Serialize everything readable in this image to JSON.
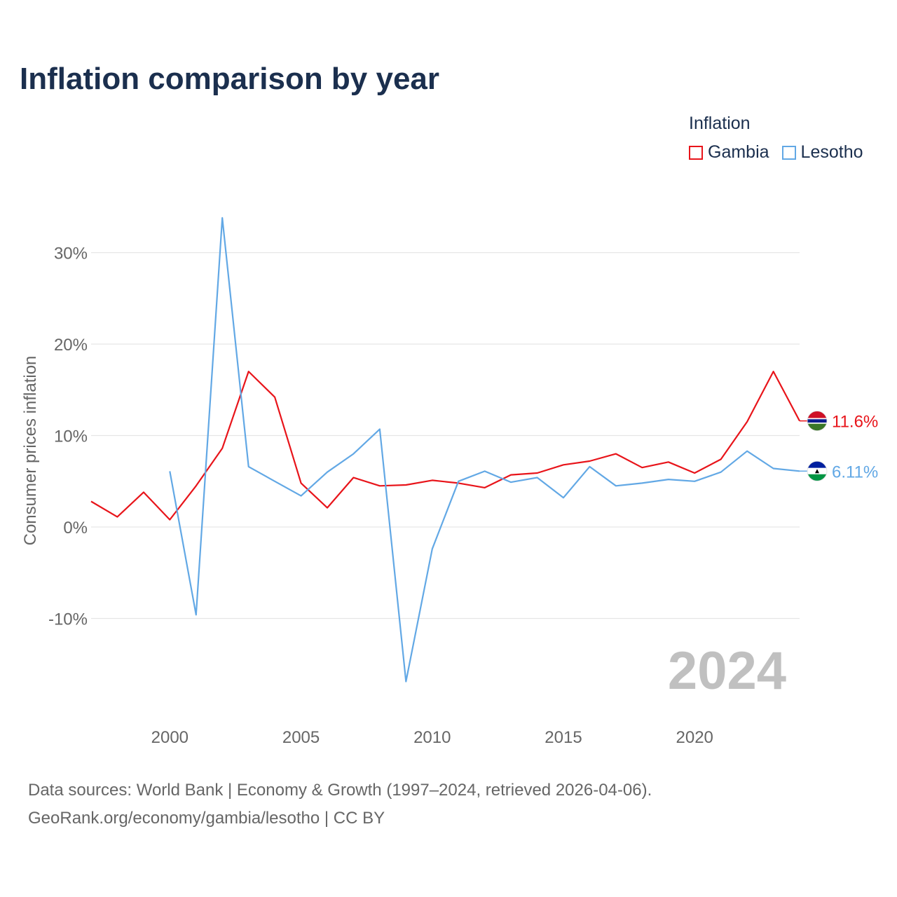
{
  "chart_data": {
    "type": "line",
    "title": "Inflation comparison by year",
    "ylabel": "Consumer prices inflation",
    "xlabel": "",
    "legend_title": "Inflation",
    "legend_position": "top-right",
    "year_watermark": "2024",
    "x": [
      1997,
      1998,
      1999,
      2000,
      2001,
      2002,
      2003,
      2004,
      2005,
      2006,
      2007,
      2008,
      2009,
      2010,
      2011,
      2012,
      2013,
      2014,
      2015,
      2016,
      2017,
      2018,
      2019,
      2020,
      2021,
      2022,
      2023,
      2024
    ],
    "xlim": [
      1997,
      2024
    ],
    "ylim": [
      -20,
      35
    ],
    "x_ticks": [
      2000,
      2005,
      2010,
      2015,
      2020
    ],
    "y_ticks": [
      -10,
      0,
      10,
      20,
      30
    ],
    "y_tick_labels": [
      "-10%",
      "0%",
      "10%",
      "20%",
      "30%"
    ],
    "series": [
      {
        "name": "Gambia",
        "color": "#e8141a",
        "end_label": "11.6%",
        "values": [
          2.8,
          1.1,
          3.8,
          0.8,
          4.5,
          8.6,
          17.0,
          14.2,
          4.8,
          2.1,
          5.4,
          4.5,
          4.6,
          5.1,
          4.8,
          4.3,
          5.7,
          5.9,
          6.8,
          7.2,
          8.0,
          6.5,
          7.1,
          5.9,
          7.4,
          11.5,
          17.0,
          11.6
        ]
      },
      {
        "name": "Lesotho",
        "color": "#62a8e5",
        "end_label": "6.11%",
        "values": [
          null,
          null,
          null,
          6.1,
          -9.6,
          33.8,
          6.6,
          5.0,
          3.4,
          6.0,
          8.0,
          10.7,
          -16.9,
          -2.4,
          5.0,
          6.1,
          4.9,
          5.4,
          3.2,
          6.6,
          4.5,
          4.8,
          5.2,
          5.0,
          6.0,
          8.3,
          6.4,
          6.11
        ]
      }
    ]
  },
  "footer": {
    "source_line1": "Data sources: World Bank | Economy & Growth (1997–2024, retrieved 2026-04-06).",
    "source_line2": "GeoRank.org/economy/gambia/lesotho | CC BY"
  }
}
